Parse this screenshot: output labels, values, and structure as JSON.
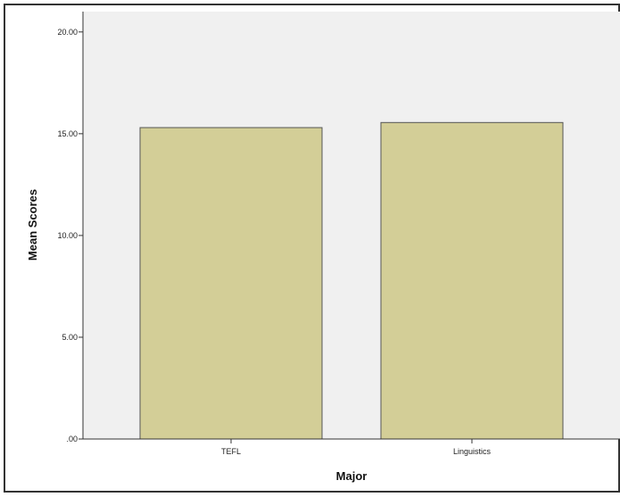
{
  "chart_data": {
    "type": "bar",
    "title": "",
    "xlabel": "Major",
    "ylabel": "Mean Scores",
    "categories": [
      "TEFL",
      "Linguistics"
    ],
    "values": [
      15.3,
      15.55
    ],
    "ylim": [
      0,
      21
    ],
    "y_ticks": [
      ".00",
      "5.00",
      "10.00",
      "15.00",
      "20.00"
    ],
    "y_tick_values": [
      0,
      5,
      10,
      15,
      20
    ],
    "grid": false,
    "legend": "none",
    "colors": {
      "plot_background": "#f0f0f0",
      "bar_fill": "#d3ce97",
      "bar_stroke": "#555555",
      "axis": "#333333"
    }
  }
}
